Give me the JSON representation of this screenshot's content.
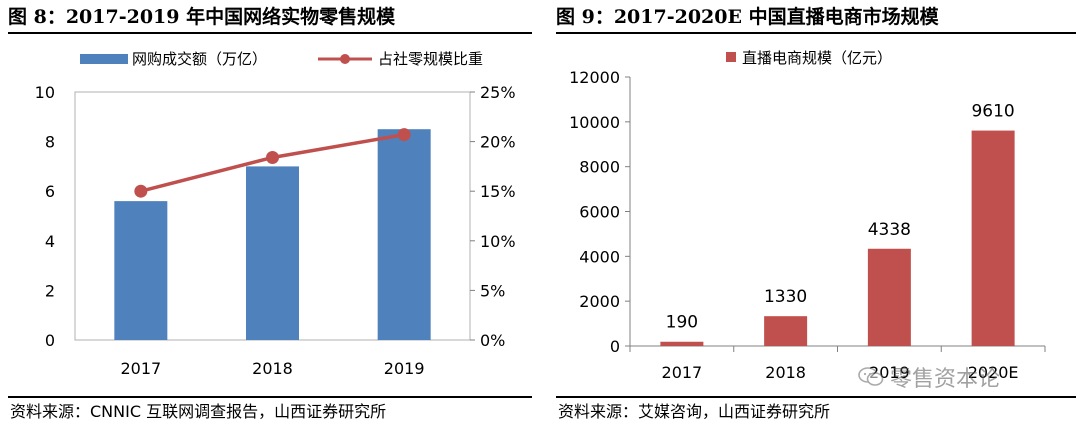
{
  "left_panel": {
    "title": "图 8：2017-2019 年中国网络实物零售规模",
    "source": "资料来源：CNNIC 互联网调查报告，山西证券研究所"
  },
  "right_panel": {
    "title": "图 9：2017-2020E 中国直播电商市场规模",
    "source": "资料来源：艾媒咨询，山西证券研究所"
  },
  "watermark": {
    "text": "零售资本论",
    "icon": "wechat-bubble-icon"
  },
  "colors": {
    "blue_bar": "#4f81bd",
    "red_line": "#c0504d",
    "red_bar": "#c0504d"
  },
  "chart_data": [
    {
      "type": "bar+line",
      "categories": [
        "2017",
        "2018",
        "2019"
      ],
      "series": [
        {
          "name": "网购成交额（万亿）",
          "type": "bar",
          "axis": "left",
          "values": [
            5.6,
            7.0,
            8.5
          ]
        },
        {
          "name": "占社零规模比重",
          "type": "line",
          "axis": "right",
          "values": [
            15.0,
            18.4,
            20.7
          ]
        }
      ],
      "y_left": {
        "min": 0,
        "max": 10,
        "ticks": [
          "0",
          "2",
          "4",
          "6",
          "8",
          "10"
        ]
      },
      "y_right": {
        "min": 0,
        "max": 25,
        "ticks": [
          "0%",
          "5%",
          "10%",
          "15%",
          "20%",
          "25%"
        ]
      },
      "legend": "top",
      "grid": false
    },
    {
      "type": "bar",
      "categories": [
        "2017",
        "2018",
        "2019",
        "2020E"
      ],
      "series": [
        {
          "name": "直播电商规模（亿元）",
          "values": [
            190,
            1330,
            4338,
            9610
          ]
        }
      ],
      "data_labels": [
        "190",
        "1330",
        "4338",
        "9610"
      ],
      "y": {
        "min": 0,
        "max": 12000,
        "ticks": [
          "0",
          "2000",
          "4000",
          "6000",
          "8000",
          "10000",
          "12000"
        ]
      },
      "legend": "top",
      "grid": false
    }
  ]
}
